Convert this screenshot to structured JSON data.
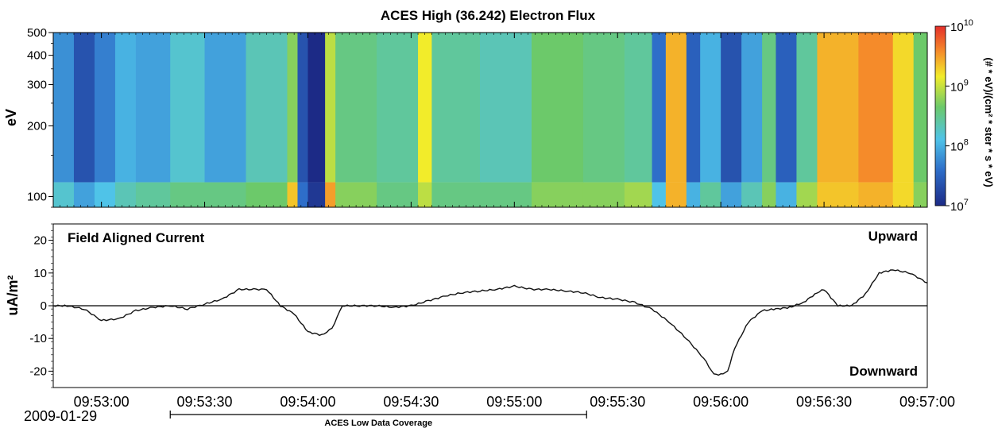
{
  "chart_data": [
    {
      "type": "heatmap",
      "title": "ACES High (36.242) Electron Flux",
      "ylabel": "eV",
      "yscale": "log",
      "ylim": [
        90,
        500
      ],
      "yticks": [
        {
          "value": 100,
          "label": "100"
        },
        {
          "value": 200,
          "label": "200"
        },
        {
          "value": 300,
          "label": "300"
        },
        {
          "value": 400,
          "label": "400"
        },
        {
          "value": 500,
          "label": "500"
        }
      ],
      "colorbar": {
        "label": "(# * eV)/(cm² * ster * s * eV)",
        "scale": "log",
        "range": [
          10000000,
          10000000000
        ],
        "ticks": [
          {
            "value": 10000000,
            "base": "10",
            "exp": "7"
          },
          {
            "value": 100000000,
            "base": "10",
            "exp": "8"
          },
          {
            "value": 1000000000,
            "base": "10",
            "exp": "9"
          },
          {
            "value": 10000000000,
            "base": "10",
            "exp": "10"
          }
        ],
        "colors": [
          "#1c2a86",
          "#2e6ec9",
          "#4fc3e8",
          "#6cc96a",
          "#f2ec2a",
          "#f58b2a",
          "#e42f2a"
        ]
      },
      "segments": [
        {
          "t0": "09:52:46",
          "t1": "09:52:52",
          "log_flux": 7.7,
          "low_energy_log_flux": 8.1
        },
        {
          "t0": "09:52:52",
          "t1": "09:52:58",
          "log_flux": 7.3,
          "low_energy_log_flux": 7.8
        },
        {
          "t0": "09:52:58",
          "t1": "09:53:04",
          "log_flux": 7.6,
          "low_energy_log_flux": 8.0
        },
        {
          "t0": "09:53:04",
          "t1": "09:53:10",
          "log_flux": 7.9,
          "low_energy_log_flux": 8.2
        },
        {
          "t0": "09:53:10",
          "t1": "09:53:20",
          "log_flux": 7.8,
          "low_energy_log_flux": 8.3
        },
        {
          "t0": "09:53:20",
          "t1": "09:53:30",
          "log_flux": 8.1,
          "low_energy_log_flux": 8.4
        },
        {
          "t0": "09:53:30",
          "t1": "09:53:42",
          "log_flux": 7.8,
          "low_energy_log_flux": 8.4
        },
        {
          "t0": "09:53:42",
          "t1": "09:53:54",
          "log_flux": 8.2,
          "low_energy_log_flux": 8.5
        },
        {
          "t0": "09:53:54",
          "t1": "09:53:57",
          "log_flux": 8.6,
          "low_energy_log_flux": 9.2
        },
        {
          "t0": "09:53:57",
          "t1": "09:54:00",
          "log_flux": 7.3,
          "low_energy_log_flux": 7.5
        },
        {
          "t0": "09:54:00",
          "t1": "09:54:05",
          "log_flux": 6.9,
          "low_energy_log_flux": 7.1
        },
        {
          "t0": "09:54:05",
          "t1": "09:54:08",
          "log_flux": 8.8,
          "low_energy_log_flux": 9.4
        },
        {
          "t0": "09:54:08",
          "t1": "09:54:20",
          "log_flux": 8.4,
          "low_energy_log_flux": 8.6
        },
        {
          "t0": "09:54:20",
          "t1": "09:54:32",
          "log_flux": 8.3,
          "low_energy_log_flux": 8.4
        },
        {
          "t0": "09:54:32",
          "t1": "09:54:36",
          "log_flux": 9.0,
          "low_energy_log_flux": 8.8
        },
        {
          "t0": "09:54:36",
          "t1": "09:54:50",
          "log_flux": 8.3,
          "low_energy_log_flux": 8.4
        },
        {
          "t0": "09:54:50",
          "t1": "09:55:05",
          "log_flux": 8.2,
          "low_energy_log_flux": 8.4
        },
        {
          "t0": "09:55:05",
          "t1": "09:55:20",
          "log_flux": 8.5,
          "low_energy_log_flux": 8.6
        },
        {
          "t0": "09:55:20",
          "t1": "09:55:32",
          "log_flux": 8.4,
          "low_energy_log_flux": 8.6
        },
        {
          "t0": "09:55:32",
          "t1": "09:55:40",
          "log_flux": 8.3,
          "low_energy_log_flux": 8.7
        },
        {
          "t0": "09:55:40",
          "t1": "09:55:44",
          "log_flux": 7.5,
          "low_energy_log_flux": 8.0
        },
        {
          "t0": "09:55:44",
          "t1": "09:55:50",
          "log_flux": 9.3,
          "low_energy_log_flux": 9.3
        },
        {
          "t0": "09:55:50",
          "t1": "09:55:54",
          "log_flux": 7.4,
          "low_energy_log_flux": 7.9
        },
        {
          "t0": "09:55:54",
          "t1": "09:56:00",
          "log_flux": 7.9,
          "low_energy_log_flux": 8.3
        },
        {
          "t0": "09:56:00",
          "t1": "09:56:06",
          "log_flux": 7.3,
          "low_energy_log_flux": 7.8
        },
        {
          "t0": "09:56:06",
          "t1": "09:56:12",
          "log_flux": 7.8,
          "low_energy_log_flux": 8.2
        },
        {
          "t0": "09:56:12",
          "t1": "09:56:16",
          "log_flux": 8.4,
          "low_energy_log_flux": 8.6
        },
        {
          "t0": "09:56:16",
          "t1": "09:56:22",
          "log_flux": 7.4,
          "low_energy_log_flux": 7.9
        },
        {
          "t0": "09:56:22",
          "t1": "09:56:28",
          "log_flux": 8.3,
          "low_energy_log_flux": 8.7
        },
        {
          "t0": "09:56:28",
          "t1": "09:56:40",
          "log_flux": 9.3,
          "low_energy_log_flux": 9.2
        },
        {
          "t0": "09:56:40",
          "t1": "09:56:50",
          "log_flux": 9.5,
          "low_energy_log_flux": 9.3
        },
        {
          "t0": "09:56:50",
          "t1": "09:56:56",
          "log_flux": 9.1,
          "low_energy_log_flux": 9.1
        },
        {
          "t0": "09:56:56",
          "t1": "09:57:00",
          "log_flux": 8.5,
          "low_energy_log_flux": 8.6
        }
      ]
    },
    {
      "type": "line",
      "title": "Field Aligned Current",
      "ylabel": "uA/m²",
      "ylim": [
        -25,
        25
      ],
      "yticks": [
        {
          "value": 20,
          "label": "20"
        },
        {
          "value": 10,
          "label": "10"
        },
        {
          "value": 0,
          "label": "0"
        },
        {
          "value": -10,
          "label": "-10"
        },
        {
          "value": -20,
          "label": "-20"
        }
      ],
      "annotations": {
        "upward": "Upward",
        "downward": "Downward"
      },
      "series": [
        {
          "x": [
            "09:52:46",
            "09:52:50",
            "09:52:55",
            "09:53:00",
            "09:53:05",
            "09:53:10",
            "09:53:15",
            "09:53:20",
            "09:53:25",
            "09:53:30",
            "09:53:35",
            "09:53:40",
            "09:53:45",
            "09:53:48",
            "09:53:52",
            "09:53:56",
            "09:54:00",
            "09:54:04",
            "09:54:07",
            "09:54:10",
            "09:54:15",
            "09:54:20",
            "09:54:25",
            "09:54:30",
            "09:54:35",
            "09:54:40",
            "09:54:45",
            "09:54:50",
            "09:54:55",
            "09:55:00",
            "09:55:05",
            "09:55:10",
            "09:55:15",
            "09:55:20",
            "09:55:25",
            "09:55:30",
            "09:55:35",
            "09:55:40",
            "09:55:45",
            "09:55:50",
            "09:55:55",
            "09:55:58",
            "09:56:00",
            "09:56:02",
            "09:56:04",
            "09:56:08",
            "09:56:12",
            "09:56:16",
            "09:56:20",
            "09:56:24",
            "09:56:28",
            "09:56:30",
            "09:56:34",
            "09:56:38",
            "09:56:42",
            "09:56:46",
            "09:56:50",
            "09:56:55",
            "09:57:00"
          ],
          "y": [
            0,
            0,
            -1,
            -4.5,
            -4,
            -1.5,
            -0.5,
            0,
            -1,
            0.5,
            2,
            5,
            5,
            5,
            0,
            -2.5,
            -8,
            -9,
            -7,
            0,
            0,
            0,
            -0.5,
            0,
            1.5,
            3,
            4,
            4.5,
            5,
            6,
            5,
            5,
            4.5,
            4,
            2.5,
            2,
            1,
            -1,
            -5,
            -10,
            -16,
            -21,
            -21,
            -20,
            -13,
            -5,
            -1.5,
            -1,
            -0.5,
            1,
            4,
            5,
            0,
            0,
            3.5,
            10,
            11,
            10,
            7
          ]
        }
      ]
    }
  ],
  "time_axis": {
    "range": [
      "09:52:46",
      "09:57:00"
    ],
    "labels": [
      "09:53:00",
      "09:53:30",
      "09:54:00",
      "09:54:30",
      "09:55:00",
      "09:55:30",
      "09:56:00",
      "09:56:30",
      "09:57:00"
    ],
    "date_label": "2009-01-29"
  },
  "coverage": {
    "label": "ACES Low Data Coverage",
    "start": "09:53:20",
    "end": "09:55:21"
  }
}
